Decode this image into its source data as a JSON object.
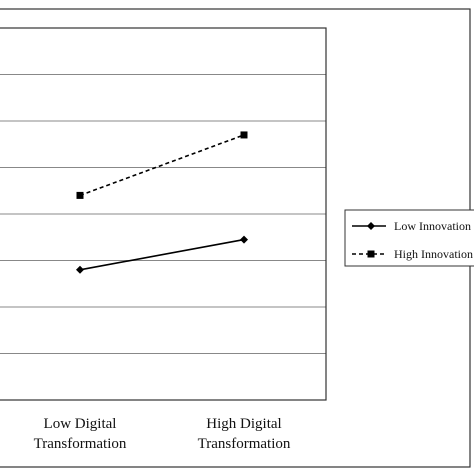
{
  "chart_data": {
    "type": "line",
    "title": "",
    "xlabel": "",
    "ylabel": "",
    "categories": [
      [
        "Low Digital",
        "Transformation"
      ],
      [
        "High Digital",
        "Transformation"
      ]
    ],
    "ylim": [
      0,
      8
    ],
    "grid": true,
    "legend_position": "right",
    "series": [
      {
        "name": "Low Innovation",
        "values": [
          2.8,
          3.45
        ],
        "line_style": "solid",
        "marker": "diamond",
        "color": "#000000"
      },
      {
        "name": "High Innovation",
        "values": [
          4.4,
          5.7
        ],
        "line_style": "dashed",
        "marker": "square",
        "color": "#000000"
      }
    ]
  },
  "colors": {
    "background": "#ffffff",
    "grid": "#888888",
    "frame": "#333333",
    "series": "#000000"
  }
}
